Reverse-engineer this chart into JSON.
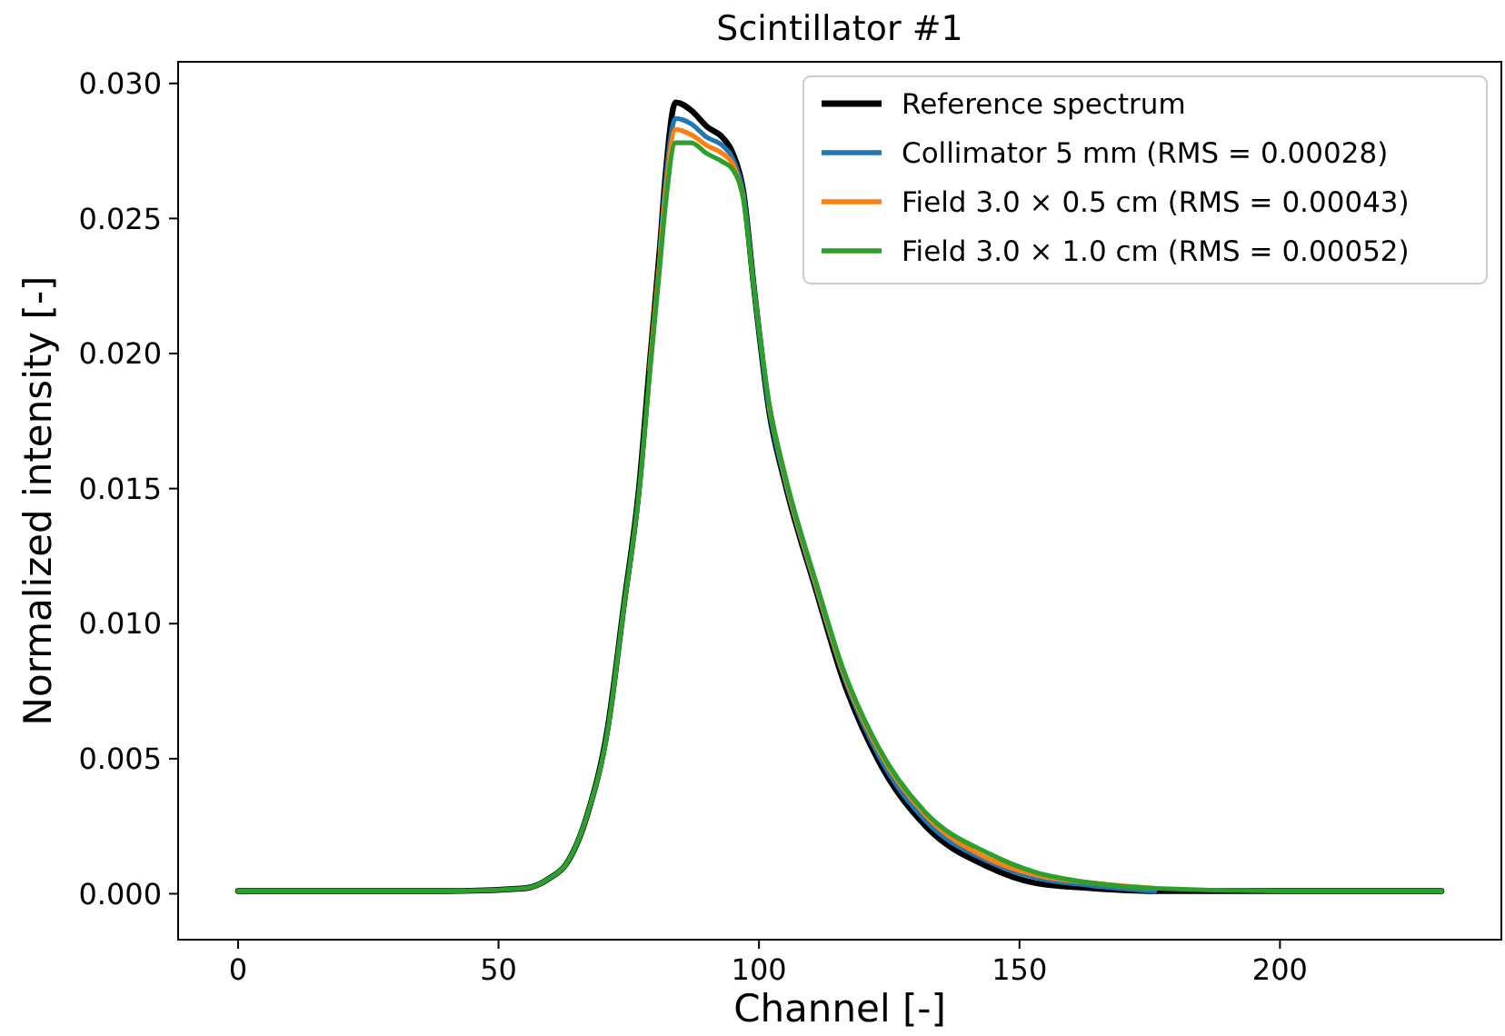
{
  "chart_data": {
    "type": "line",
    "title": "Scintillator #1",
    "xlabel": "Channel [-]",
    "ylabel": "Normalized intensity [-]",
    "x": [
      0,
      20,
      40,
      55,
      60,
      63,
      67,
      71,
      74,
      77,
      79,
      81,
      82,
      84,
      87,
      90,
      93,
      95,
      97,
      99,
      102,
      105,
      111,
      116,
      123,
      132,
      144,
      153,
      164,
      176,
      200,
      231
    ],
    "series": [
      {
        "name": "Reference spectrum",
        "color": "#000000",
        "values": [
          0.0001,
          0.0001,
          0.0001,
          0.0002,
          0.0006,
          0.0011,
          0.0029,
          0.0062,
          0.0106,
          0.0151,
          0.0196,
          0.024,
          0.0265,
          0.0293,
          0.029,
          0.0284,
          0.028,
          0.0274,
          0.026,
          0.0225,
          0.0178,
          0.0152,
          0.0112,
          0.008,
          0.0049,
          0.0025,
          0.001,
          0.0004,
          0.0002,
          0.0001,
          0.0001,
          0.0001
        ]
      },
      {
        "name": "Collimator 5 mm (RMS = 0.00028)",
        "color": "#1f77b4",
        "values": [
          null,
          null,
          null,
          null,
          null,
          null,
          null,
          null,
          null,
          null,
          null,
          0.0238,
          0.0262,
          0.0287,
          0.0285,
          0.028,
          0.0277,
          0.0272,
          0.0259,
          0.0225,
          0.0179,
          0.0153,
          0.0113,
          0.0082,
          0.0051,
          0.0027,
          0.0012,
          0.0006,
          0.0003,
          0.0001,
          null,
          null
        ]
      },
      {
        "name": "Field 3.0 × 0.5 cm (RMS = 0.00043)",
        "color": "#ff7f0e",
        "values": [
          null,
          null,
          null,
          null,
          null,
          null,
          null,
          null,
          null,
          null,
          0.0194,
          0.0236,
          0.0258,
          0.0283,
          0.0281,
          0.0277,
          0.0274,
          0.027,
          0.0258,
          null,
          0.018,
          0.0154,
          0.0114,
          0.0083,
          0.0053,
          0.0029,
          0.0013,
          0.0007,
          0.0004,
          0.0002,
          null,
          null
        ]
      },
      {
        "name": "Field 3.0 × 1.0 cm (RMS = 0.00052)",
        "color": "#2ca02c",
        "values": [
          0.0001,
          0.0001,
          0.0001,
          0.0002,
          0.0006,
          0.0011,
          0.0029,
          0.0061,
          0.0105,
          0.0149,
          0.0192,
          0.0233,
          0.0254,
          0.0278,
          0.0278,
          0.0274,
          0.0271,
          0.0268,
          0.0257,
          0.0225,
          0.0181,
          0.0155,
          0.0115,
          0.0084,
          0.0054,
          0.003,
          0.0015,
          0.0008,
          0.0004,
          0.0002,
          0.0001,
          0.0001
        ]
      }
    ],
    "xlim": [
      -11.5,
      242.5
    ],
    "xticks": [
      0,
      50,
      100,
      150,
      200
    ],
    "ylim": [
      -0.0017,
      0.0308
    ],
    "yticks": [
      {
        "value": 0,
        "label": "0.000"
      },
      {
        "value": 0.005,
        "label": "0.005"
      },
      {
        "value": 0.01,
        "label": "0.010"
      },
      {
        "value": 0.015,
        "label": "0.015"
      },
      {
        "value": 0.02,
        "label": "0.020"
      },
      {
        "value": 0.025,
        "label": "0.025"
      },
      {
        "value": 0.03,
        "label": "0.030"
      }
    ],
    "grid": false,
    "legend": "top right",
    "line_style": "solid"
  }
}
